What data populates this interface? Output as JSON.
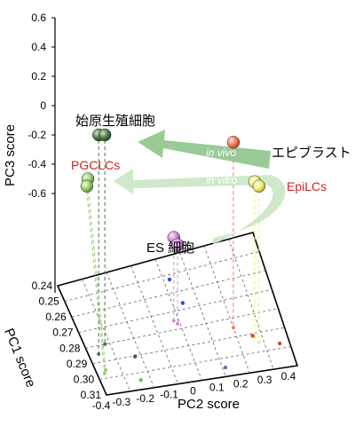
{
  "chart_data": {
    "type": "scatter",
    "projection": "3d",
    "axes": {
      "pc3": {
        "label": "PC3 score",
        "ticks": [
          "0.6",
          "0.4",
          "0.2",
          "0",
          "-0.2",
          "-0.4",
          "-0.6"
        ],
        "range": [
          -0.6,
          0.6
        ]
      },
      "pc1": {
        "label": "PC1 score",
        "ticks": [
          "0.24",
          "0.25",
          "0.26",
          "0.27",
          "0.28",
          "0.29",
          "0.30",
          "0.31"
        ],
        "range": [
          0.24,
          0.31
        ]
      },
      "pc2": {
        "label": "PC2 score",
        "ticks": [
          "-0.4",
          "-0.3",
          "-0.2",
          "-0.1",
          "0",
          "0.1",
          "0.2",
          "0.3",
          "0.4"
        ],
        "range": [
          -0.4,
          0.4
        ]
      }
    },
    "grid": true,
    "series": [
      {
        "name": "始原生殖細胞",
        "color": "#4a7a45",
        "points": [
          {
            "pc1": 0.285,
            "pc2": -0.36,
            "pc3": -0.2
          },
          {
            "pc1": 0.28,
            "pc2": -0.32,
            "pc3": -0.2
          }
        ]
      },
      {
        "name": "PGCLCs",
        "color": "#98cc6c",
        "points": [
          {
            "pc1": 0.295,
            "pc2": -0.36,
            "pc3": -0.5
          },
          {
            "pc1": 0.297,
            "pc2": -0.37,
            "pc3": -0.55
          }
        ]
      },
      {
        "name": "エピブラスト",
        "color": "#f07a5a",
        "points": [
          {
            "pc1": 0.285,
            "pc2": 0.2,
            "pc3": -0.25
          }
        ]
      },
      {
        "name": "EpiLCs",
        "color": "#eef07a",
        "points": [
          {
            "pc1": 0.292,
            "pc2": 0.27,
            "pc3": -0.52
          },
          {
            "pc1": 0.295,
            "pc2": 0.28,
            "pc3": -0.55
          }
        ]
      },
      {
        "name": "ES 細胞",
        "color": "#cf8ed6",
        "points": [
          {
            "pc1": 0.275,
            "pc2": -0.02,
            "pc3": -0.9
          },
          {
            "pc1": 0.277,
            "pc2": -0.01,
            "pc3": -0.95
          }
        ]
      }
    ],
    "floor_points": [
      {
        "color": "#2d4fd0"
      },
      {
        "color": "#2d4fd0"
      },
      {
        "color": "#e83a3a"
      },
      {
        "color": "#2d6a2a"
      },
      {
        "color": "#d24a2a"
      },
      {
        "color": "#9a55b0"
      },
      {
        "color": "#6fc04a"
      }
    ],
    "annotations": {
      "pgc": "始原生殖細胞",
      "pgclc": "PGCLCs",
      "epi": "エピブラスト",
      "epilc": "EpiLCs",
      "es": "ES 細胞",
      "invivo": "in vivo",
      "invitro": "in vitro"
    },
    "colors": {
      "label_red": "#cc2222",
      "arrow_dark": "#8fc48a",
      "arrow_light": "#c7e4c1"
    }
  }
}
